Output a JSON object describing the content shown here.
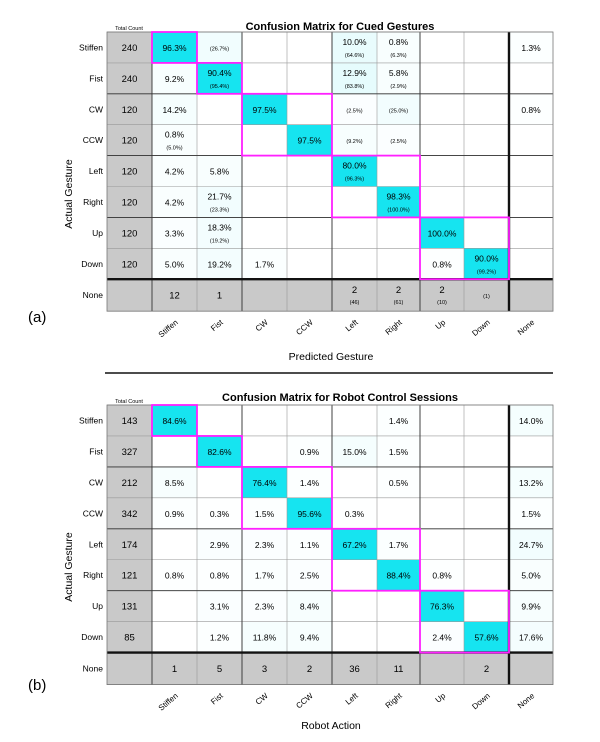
{
  "colors": {
    "diag": "#16e4f0",
    "highlight": "#ff20ff",
    "count_bg": "#c9c9c9",
    "separator": "#111111"
  },
  "chart_data": [
    {
      "type": "heatmap",
      "panel_label": "(a)",
      "title": "Confusion Matrix for Cued Gestures",
      "count_header": "Total Count",
      "ylabel": "Actual Gesture",
      "xlabel": "Predicted Gesture",
      "rows": [
        "Stiffen",
        "Fist",
        "CW",
        "CCW",
        "Left",
        "Right",
        "Up",
        "Down"
      ],
      "none_label": "None",
      "cols": [
        "Stiffen",
        "Fist",
        "CW",
        "CCW",
        "Left",
        "Right",
        "Up",
        "Down",
        "None"
      ],
      "counts": [
        "240",
        "240",
        "120",
        "120",
        "120",
        "120",
        "120",
        "120"
      ],
      "cells": [
        [
          {
            "p": "96.3%",
            "d": 1
          },
          {
            "s": "(26.7%)"
          },
          {},
          {},
          {
            "p": "10.0%",
            "s": "(64.6%)"
          },
          {
            "p": "0.8%",
            "s": "(6.3%)"
          },
          {},
          {},
          {
            "p": "1.3%"
          }
        ],
        [
          {
            "p": "9.2%"
          },
          {
            "p": "90.4%",
            "s": "(95.4%)",
            "d": 1
          },
          {},
          {},
          {
            "p": "12.9%",
            "s": "(83.8%)"
          },
          {
            "p": "5.8%",
            "s": "(2.9%)"
          },
          {},
          {},
          {}
        ],
        [
          {
            "p": "14.2%"
          },
          {},
          {
            "p": "97.5%",
            "d": 1
          },
          {},
          {
            "s": "(2.5%)"
          },
          {
            "s": "(25.0%)"
          },
          {},
          {},
          {
            "p": "0.8%"
          }
        ],
        [
          {
            "p": "0.8%",
            "s": "(5.0%)"
          },
          {},
          {},
          {
            "p": "97.5%",
            "d": 1
          },
          {
            "s": "(9.2%)"
          },
          {
            "s": "(2.5%)"
          },
          {},
          {},
          {}
        ],
        [
          {
            "p": "4.2%"
          },
          {
            "p": "5.8%"
          },
          {},
          {},
          {
            "p": "80.0%",
            "s": "(96.3%)",
            "d": 1
          },
          {},
          {},
          {},
          {}
        ],
        [
          {
            "p": "4.2%"
          },
          {
            "p": "21.7%",
            "s": "(23.3%)"
          },
          {},
          {},
          {},
          {
            "p": "98.3%",
            "s": "(100.0%)",
            "d": 1
          },
          {},
          {},
          {}
        ],
        [
          {
            "p": "3.3%"
          },
          {
            "p": "18.3%",
            "s": "(19.2%)"
          },
          {},
          {},
          {},
          {},
          {
            "p": "100.0%",
            "d": 1
          },
          {},
          {}
        ],
        [
          {
            "p": "5.0%"
          },
          {
            "p": "19.2%"
          },
          {
            "p": "1.7%"
          },
          {},
          {},
          {},
          {
            "p": "0.8%"
          },
          {
            "p": "90.0%",
            "s": "(99.2%)",
            "d": 1
          },
          {}
        ]
      ],
      "none_row": [
        {
          "p": "12"
        },
        {
          "p": "1"
        },
        {},
        {},
        {
          "p": "2",
          "s": "(46)"
        },
        {
          "p": "2",
          "s": "(61)"
        },
        {
          "p": "2",
          "s": "(10)"
        },
        {
          "s": "(1)"
        },
        {}
      ],
      "shade": [
        [
          0.963,
          0.267,
          0,
          0,
          0.646,
          0.063,
          0,
          0,
          0.013
        ],
        [
          0.092,
          0.954,
          0,
          0,
          0.838,
          0.058,
          0,
          0,
          0
        ],
        [
          0.142,
          0,
          0.975,
          0,
          0.025,
          0.25,
          0,
          0,
          0.008
        ],
        [
          0.05,
          0,
          0,
          0.975,
          0.092,
          0.025,
          0,
          0,
          0
        ],
        [
          0.042,
          0.058,
          0,
          0,
          0.963,
          0,
          0,
          0,
          0
        ],
        [
          0.042,
          0.233,
          0,
          0,
          0,
          1.0,
          0,
          0,
          0
        ],
        [
          0.033,
          0.192,
          0,
          0,
          0,
          0,
          1.0,
          0,
          0
        ],
        [
          0.05,
          0.192,
          0.017,
          0,
          0,
          0,
          0.008,
          0.992,
          0
        ]
      ]
    },
    {
      "type": "heatmap",
      "panel_label": "(b)",
      "title": "Confusion Matrix for Robot Control Sessions",
      "count_header": "Total Count",
      "ylabel": "Actual Gesture",
      "xlabel": "Robot Action",
      "rows": [
        "Stiffen",
        "Fist",
        "CW",
        "CCW",
        "Left",
        "Right",
        "Up",
        "Down"
      ],
      "none_label": "None",
      "cols": [
        "Stiffen",
        "Fist",
        "CW",
        "CCW",
        "Left",
        "Right",
        "Up",
        "Down",
        "None"
      ],
      "counts": [
        "143",
        "327",
        "212",
        "342",
        "174",
        "121",
        "131",
        "85"
      ],
      "cells": [
        [
          {
            "p": "84.6%",
            "d": 1
          },
          {},
          {},
          {},
          {},
          {
            "p": "1.4%"
          },
          {},
          {},
          {
            "p": "14.0%"
          }
        ],
        [
          {},
          {
            "p": "82.6%",
            "d": 1
          },
          {},
          {
            "p": "0.9%"
          },
          {
            "p": "15.0%"
          },
          {
            "p": "1.5%"
          },
          {},
          {},
          {}
        ],
        [
          {
            "p": "8.5%"
          },
          {},
          {
            "p": "76.4%",
            "d": 1
          },
          {
            "p": "1.4%"
          },
          {},
          {
            "p": "0.5%"
          },
          {},
          {},
          {
            "p": "13.2%"
          }
        ],
        [
          {
            "p": "0.9%"
          },
          {
            "p": "0.3%"
          },
          {
            "p": "1.5%"
          },
          {
            "p": "95.6%",
            "d": 1
          },
          {
            "p": "0.3%"
          },
          {},
          {},
          {},
          {
            "p": "1.5%"
          }
        ],
        [
          {},
          {
            "p": "2.9%"
          },
          {
            "p": "2.3%"
          },
          {
            "p": "1.1%"
          },
          {
            "p": "67.2%",
            "d": 1
          },
          {
            "p": "1.7%"
          },
          {},
          {},
          {
            "p": "24.7%"
          }
        ],
        [
          {
            "p": "0.8%"
          },
          {
            "p": "0.8%"
          },
          {
            "p": "1.7%"
          },
          {
            "p": "2.5%"
          },
          {},
          {
            "p": "88.4%",
            "d": 1
          },
          {
            "p": "0.8%"
          },
          {},
          {
            "p": "5.0%"
          }
        ],
        [
          {},
          {
            "p": "3.1%"
          },
          {
            "p": "2.3%"
          },
          {
            "p": "8.4%"
          },
          {},
          {},
          {
            "p": "76.3%",
            "d": 1
          },
          {},
          {
            "p": "9.9%"
          }
        ],
        [
          {},
          {
            "p": "1.2%"
          },
          {
            "p": "11.8%"
          },
          {
            "p": "9.4%"
          },
          {},
          {},
          {
            "p": "2.4%"
          },
          {
            "p": "57.6%",
            "d": 1
          },
          {
            "p": "17.6%"
          }
        ]
      ],
      "none_row": [
        {
          "p": "1"
        },
        {
          "p": "5"
        },
        {
          "p": "3"
        },
        {
          "p": "2"
        },
        {
          "p": "36"
        },
        {
          "p": "11"
        },
        {},
        {
          "p": "2"
        },
        {}
      ],
      "shade": [
        [
          0.846,
          0,
          0,
          0,
          0,
          0.014,
          0,
          0,
          0.14
        ],
        [
          0,
          0.826,
          0,
          0.009,
          0.15,
          0.015,
          0,
          0,
          0
        ],
        [
          0.085,
          0,
          0.764,
          0.014,
          0,
          0.005,
          0,
          0,
          0.132
        ],
        [
          0.009,
          0.003,
          0.015,
          0.956,
          0.003,
          0,
          0,
          0,
          0.015
        ],
        [
          0,
          0.029,
          0.023,
          0.011,
          0.672,
          0.017,
          0,
          0,
          0.247
        ],
        [
          0.008,
          0.008,
          0.017,
          0.025,
          0,
          0.884,
          0.008,
          0,
          0.05
        ],
        [
          0,
          0.031,
          0.023,
          0.084,
          0,
          0,
          0.763,
          0,
          0.099
        ],
        [
          0,
          0.012,
          0.118,
          0.094,
          0,
          0,
          0.024,
          0.576,
          0.176
        ]
      ]
    }
  ]
}
